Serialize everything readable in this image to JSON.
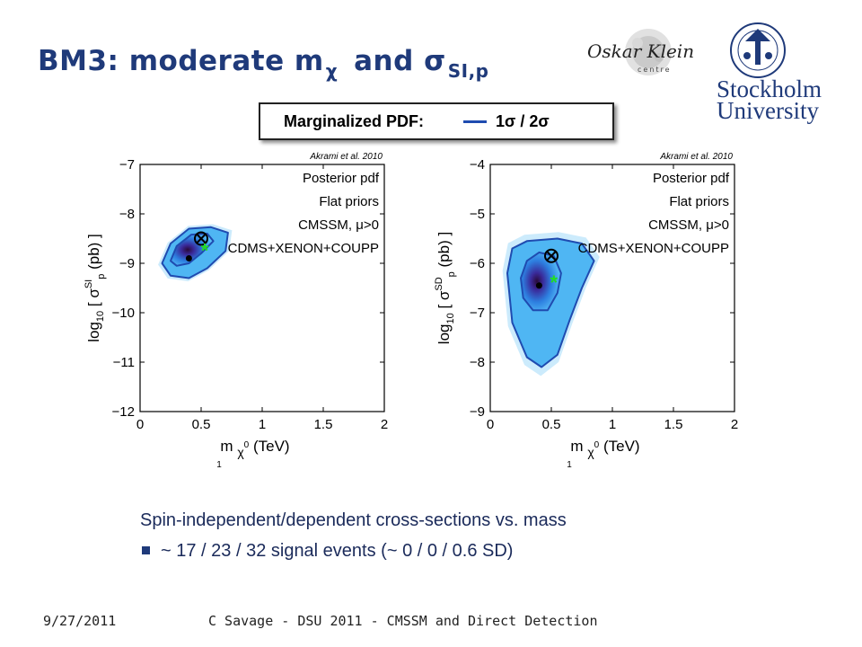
{
  "slide": {
    "title": {
      "main": "BM3:  moderate m",
      "chi": "χ",
      "and": "and σ",
      "sub": "SI,p"
    },
    "legend": {
      "label": "Marginalized PDF:",
      "value": "1σ / 2σ"
    },
    "bottom_text": "Spin-independent/dependent cross-sections vs. mass",
    "bullet": "~ 17 / 23 / 32 signal events (~ 0 / 0 / 0.6 SD)",
    "footer": {
      "date": "9/27/2011",
      "title": "C Savage - DSU 2011 - CMSSM and Direct Detection"
    },
    "logos": {
      "left_script": "Oskar Klein",
      "left_word": "centre",
      "right_name_1": "Stockholm",
      "right_name_2": "University"
    }
  },
  "chart_data": [
    {
      "type": "heatmap",
      "credit": "Akrami et al. 2010",
      "annotations": [
        "Posterior pdf",
        "Flat priors",
        "CMSSM, μ>0",
        "CDMS+XENON+COUPP"
      ],
      "xlabel": "m_χ₁⁰ (TeV)",
      "xlabel_main": "m",
      "xlabel_sub": "χ",
      "xlabel_subsup": "0",
      "xlabel_subsub": "1",
      "xlabel_unit": "(TeV)",
      "ylabel_prefix": "log",
      "ylabel_sub": "10",
      "ylabel_sigma": "[ σ",
      "ylabel_sup": "SI",
      "ylabel_p": "p",
      "ylabel_unit": "(pb) ]",
      "xlim": [
        0,
        2
      ],
      "ylim": [
        -12,
        -7
      ],
      "xticks": [
        0,
        0.5,
        1,
        1.5,
        2
      ],
      "xtick_labels": [
        "0",
        "0.5",
        "1",
        "1.5",
        "2"
      ],
      "yticks": [
        -12,
        -11,
        -10,
        -9,
        -8,
        -7
      ],
      "ytick_labels": [
        "−12",
        "−11",
        "−10",
        "−9",
        "−8",
        "−7"
      ],
      "best_fit": {
        "x": 0.4,
        "y": -8.9
      },
      "benchmark": {
        "x": 0.5,
        "y": -8.5
      },
      "posterior_mean": {
        "x": 0.53,
        "y": -8.75
      },
      "contour_1sigma": [
        [
          0.25,
          -8.95
        ],
        [
          0.3,
          -8.65
        ],
        [
          0.42,
          -8.42
        ],
        [
          0.55,
          -8.4
        ],
        [
          0.6,
          -8.55
        ],
        [
          0.5,
          -8.8
        ],
        [
          0.4,
          -9.0
        ],
        [
          0.3,
          -9.05
        ]
      ],
      "contour_2sigma": [
        [
          0.18,
          -9.0
        ],
        [
          0.25,
          -8.6
        ],
        [
          0.4,
          -8.3
        ],
        [
          0.58,
          -8.27
        ],
        [
          0.72,
          -8.38
        ],
        [
          0.7,
          -8.75
        ],
        [
          0.55,
          -9.1
        ],
        [
          0.4,
          -9.3
        ],
        [
          0.25,
          -9.25
        ]
      ]
    },
    {
      "type": "heatmap",
      "credit": "Akrami et al. 2010",
      "annotations": [
        "Posterior pdf",
        "Flat priors",
        "CMSSM, μ>0",
        "CDMS+XENON+COUPP"
      ],
      "xlabel": "m_χ₁⁰ (TeV)",
      "xlabel_main": "m",
      "xlabel_sub": "χ",
      "xlabel_subsup": "0",
      "xlabel_subsub": "1",
      "xlabel_unit": "(TeV)",
      "ylabel_prefix": "log",
      "ylabel_sub": "10",
      "ylabel_sigma": "[ σ",
      "ylabel_sup": "SD",
      "ylabel_p": "p",
      "ylabel_unit": "(pb) ]",
      "xlim": [
        0,
        2
      ],
      "ylim": [
        -9,
        -4
      ],
      "xticks": [
        0,
        0.5,
        1,
        1.5,
        2
      ],
      "xtick_labels": [
        "0",
        "0.5",
        "1",
        "1.5",
        "2"
      ],
      "yticks": [
        -9,
        -8,
        -7,
        -6,
        -5,
        -4
      ],
      "ytick_labels": [
        "−9",
        "−8",
        "−7",
        "−6",
        "−5",
        "−4"
      ],
      "best_fit": {
        "x": 0.4,
        "y": -6.45
      },
      "benchmark": {
        "x": 0.5,
        "y": -5.85
      },
      "posterior_mean": {
        "x": 0.52,
        "y": -6.4
      },
      "contour_1sigma": [
        [
          0.25,
          -6.3
        ],
        [
          0.3,
          -5.95
        ],
        [
          0.4,
          -5.78
        ],
        [
          0.52,
          -5.85
        ],
        [
          0.58,
          -6.2
        ],
        [
          0.55,
          -6.6
        ],
        [
          0.47,
          -6.95
        ],
        [
          0.35,
          -6.95
        ],
        [
          0.27,
          -6.7
        ]
      ],
      "contour_2sigma": [
        [
          0.14,
          -6.2
        ],
        [
          0.18,
          -5.7
        ],
        [
          0.3,
          -5.55
        ],
        [
          0.55,
          -5.5
        ],
        [
          0.75,
          -5.6
        ],
        [
          0.85,
          -5.95
        ],
        [
          0.75,
          -6.5
        ],
        [
          0.65,
          -7.15
        ],
        [
          0.55,
          -7.85
        ],
        [
          0.42,
          -8.1
        ],
        [
          0.3,
          -7.9
        ],
        [
          0.18,
          -7.2
        ]
      ]
    }
  ]
}
